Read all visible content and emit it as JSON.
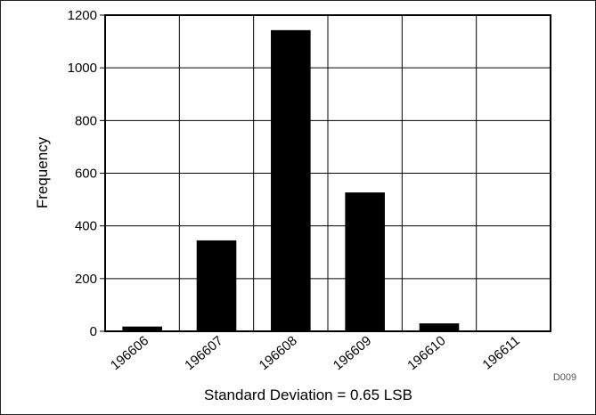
{
  "chart_data": {
    "type": "bar",
    "categories": [
      "196606",
      "196607",
      "196608",
      "196609",
      "196610",
      "196611"
    ],
    "values": [
      18,
      345,
      1143,
      527,
      30,
      2
    ],
    "title": "",
    "xlabel": "Standard Deviation = 0.65 LSB",
    "ylabel": "Frequency",
    "ylim": [
      0,
      1200
    ],
    "yticks": [
      0,
      200,
      400,
      600,
      800,
      1000,
      1200
    ],
    "grid": true,
    "bar_color": "#000000",
    "grid_color": "#000000",
    "note": "D009"
  }
}
